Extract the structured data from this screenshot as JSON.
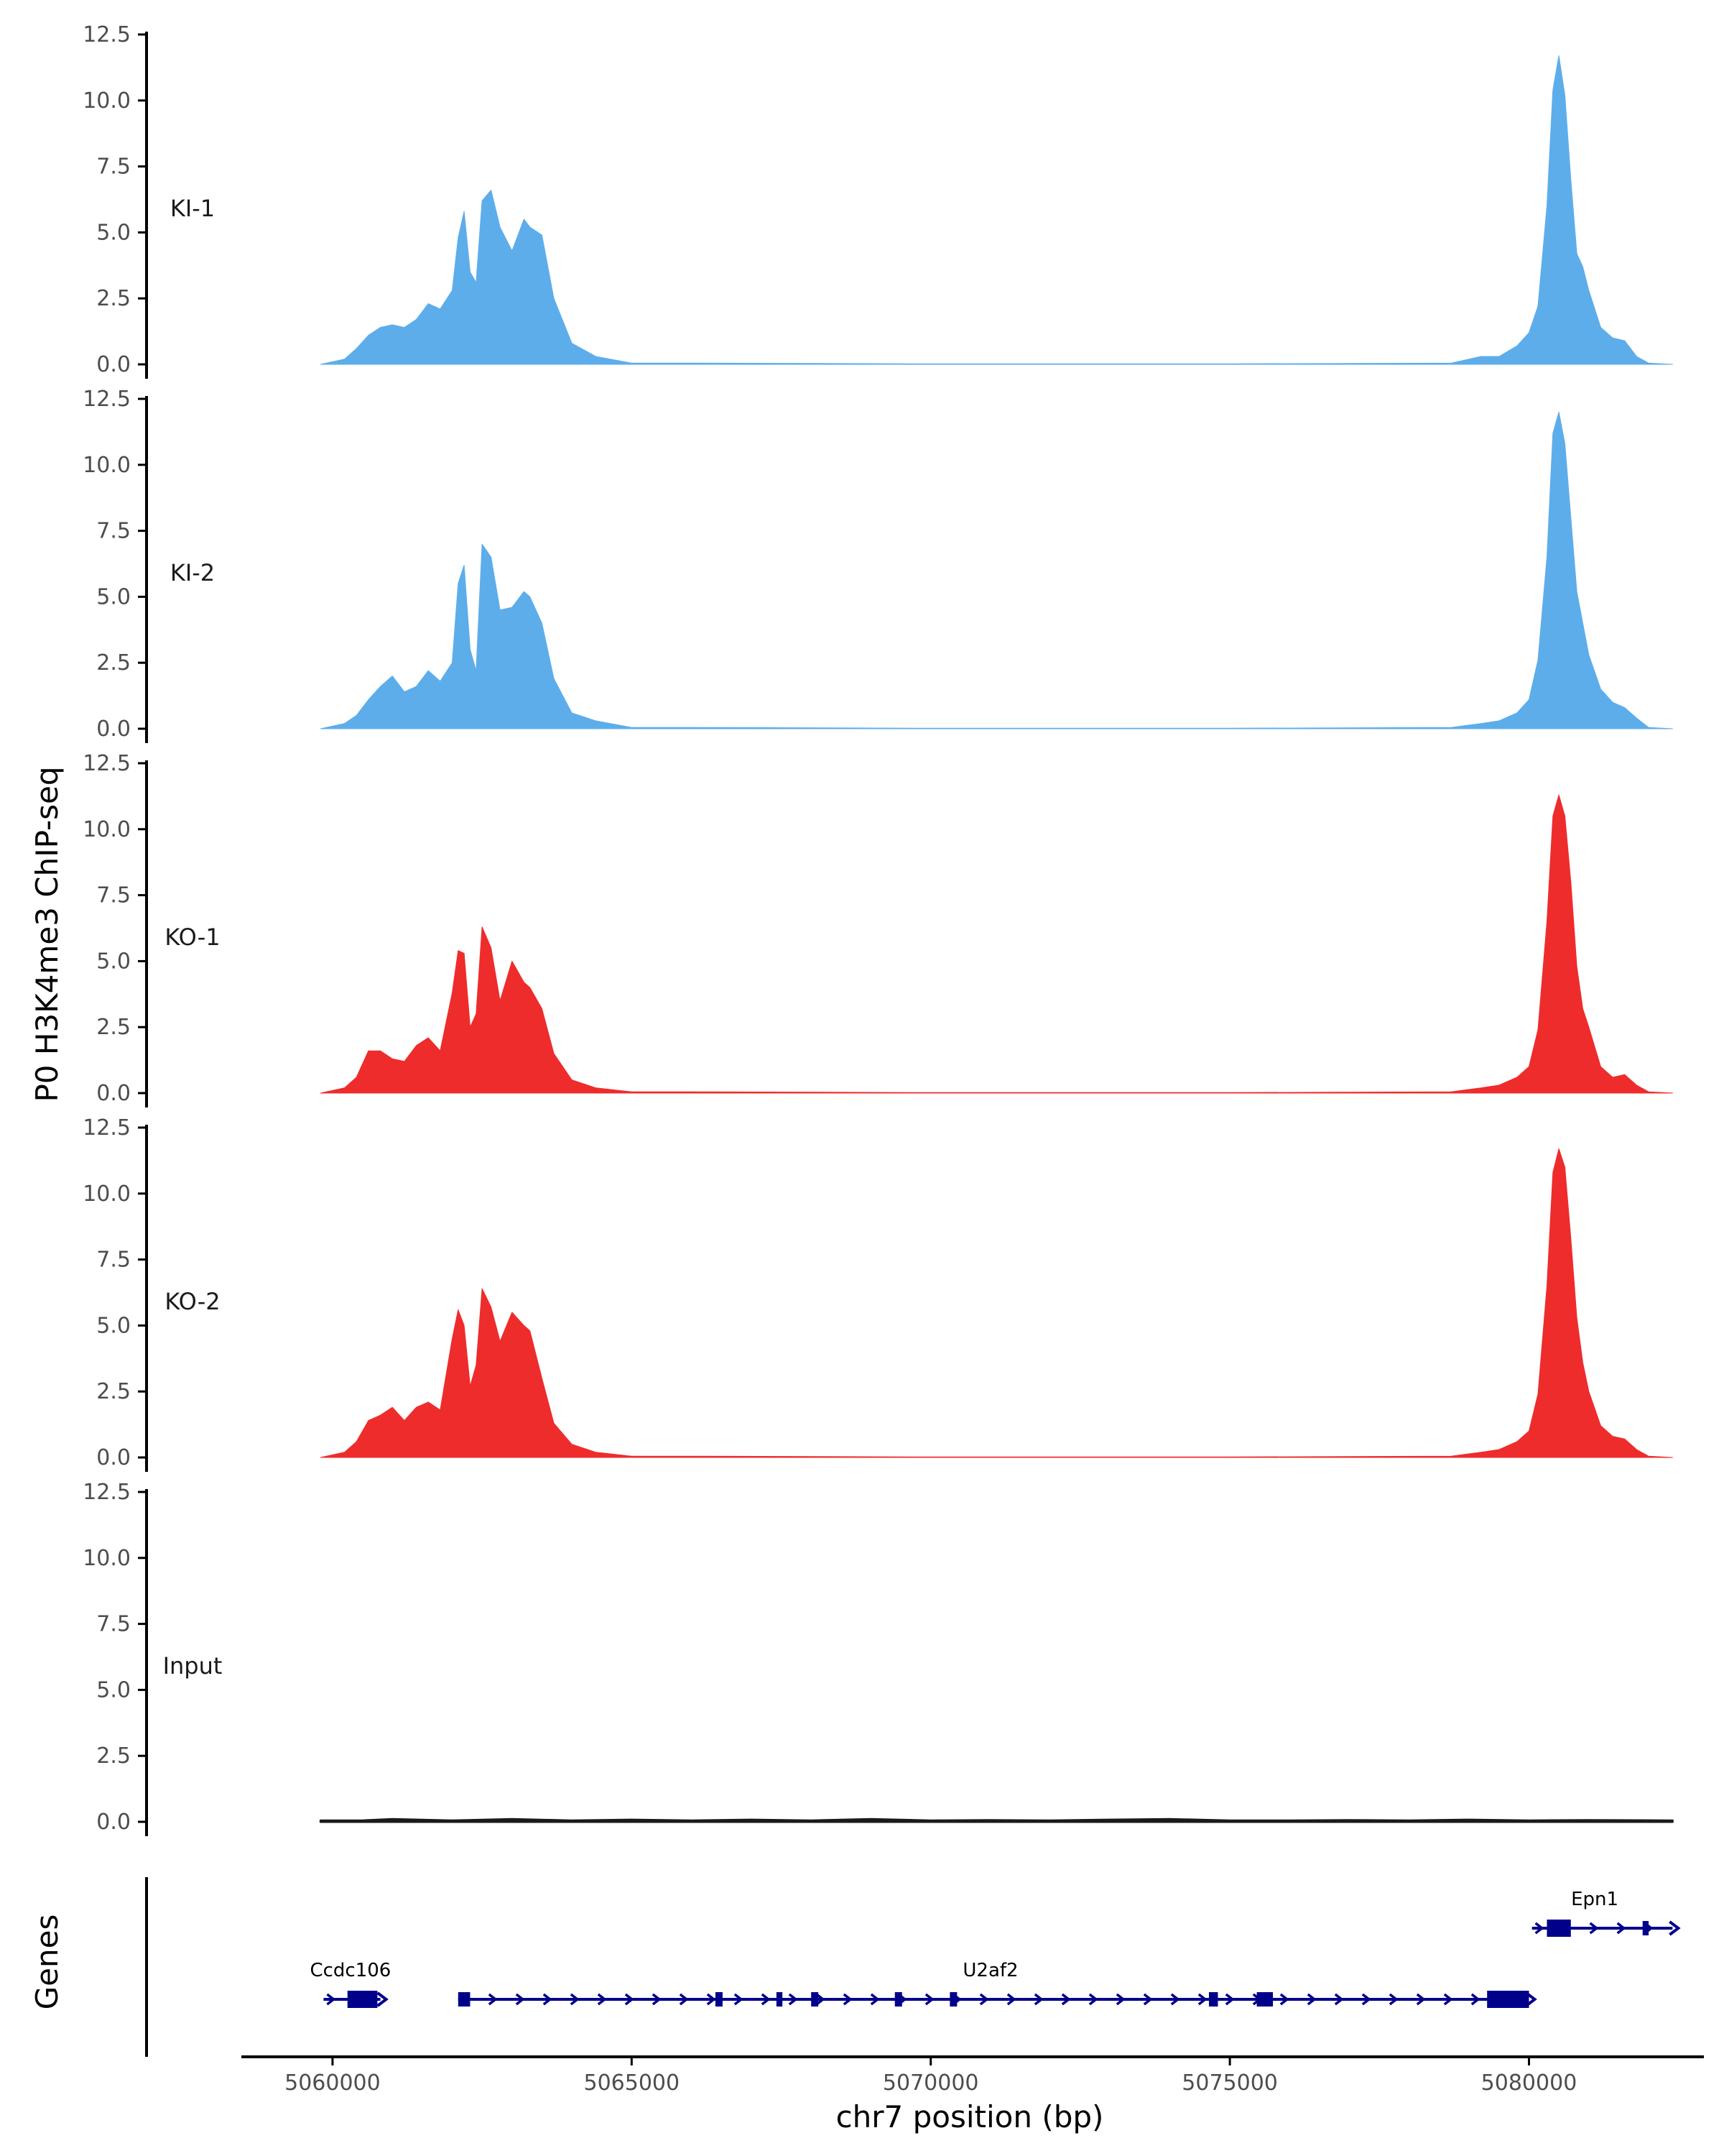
{
  "chart_data": {
    "type": "area",
    "title": "",
    "ylabel": "P0 H3K4me3 ChIP-seq",
    "xlabel": "chr7 position (bp)",
    "genes_label": "Genes",
    "ylim": [
      0,
      12.5
    ],
    "yticks": [
      0.0,
      2.5,
      5.0,
      7.5,
      10.0,
      12.5
    ],
    "ytick_labels": [
      "0.0",
      "2.5",
      "5.0",
      "7.5",
      "10.0",
      "12.5"
    ],
    "xlim": [
      5058500,
      5082900
    ],
    "xticks": [
      5060000,
      5065000,
      5070000,
      5075000,
      5080000
    ],
    "xtick_labels": [
      "5060000",
      "5065000",
      "5070000",
      "5075000",
      "5080000"
    ],
    "colors": {
      "KI": "#5DADEB",
      "KO": "#EE2C2C",
      "Input": "#1a1a1a",
      "gene": "#00008B",
      "axis": "#000000"
    },
    "series": [
      {
        "name": "KI-1",
        "color": "#5DADEB",
        "x": [
          5059800,
          5060200,
          5060400,
          5060600,
          5060800,
          5061000,
          5061200,
          5061400,
          5061600,
          5061800,
          5062000,
          5062100,
          5062200,
          5062300,
          5062400,
          5062500,
          5062650,
          5062800,
          5063000,
          5063200,
          5063300,
          5063500,
          5063700,
          5064000,
          5064400,
          5065000,
          5066000,
          5070000,
          5075000,
          5078700,
          5079200,
          5079500,
          5079800,
          5080000,
          5080150,
          5080300,
          5080400,
          5080500,
          5080600,
          5080700,
          5080800,
          5080900,
          5081000,
          5081200,
          5081400,
          5081600,
          5081800,
          5082000,
          5082400
        ],
        "y": [
          0,
          0.2,
          0.6,
          1.1,
          1.4,
          1.5,
          1.4,
          1.7,
          2.3,
          2.1,
          2.8,
          4.8,
          5.8,
          3.5,
          3.1,
          6.2,
          6.6,
          5.2,
          4.3,
          5.5,
          5.2,
          4.9,
          2.5,
          0.8,
          0.3,
          0.05,
          0.05,
          0.02,
          0.02,
          0.05,
          0.3,
          0.3,
          0.7,
          1.2,
          2.2,
          6.0,
          10.4,
          11.7,
          10.2,
          7.0,
          4.2,
          3.7,
          2.8,
          1.4,
          1.0,
          0.9,
          0.3,
          0.05,
          0
        ]
      },
      {
        "name": "KI-2",
        "color": "#5DADEB",
        "x": [
          5059800,
          5060200,
          5060400,
          5060600,
          5060800,
          5061000,
          5061200,
          5061400,
          5061600,
          5061800,
          5062000,
          5062100,
          5062200,
          5062300,
          5062400,
          5062500,
          5062650,
          5062800,
          5063000,
          5063200,
          5063300,
          5063500,
          5063700,
          5064000,
          5064400,
          5065000,
          5066000,
          5070000,
          5075000,
          5078700,
          5079200,
          5079500,
          5079800,
          5080000,
          5080150,
          5080300,
          5080400,
          5080500,
          5080600,
          5080700,
          5080800,
          5080900,
          5081000,
          5081200,
          5081400,
          5081600,
          5081800,
          5082000,
          5082400
        ],
        "y": [
          0,
          0.2,
          0.5,
          1.1,
          1.6,
          2.0,
          1.4,
          1.6,
          2.2,
          1.8,
          2.5,
          5.5,
          6.2,
          3.0,
          2.2,
          7.0,
          6.5,
          4.5,
          4.6,
          5.2,
          5.0,
          4.0,
          1.9,
          0.6,
          0.3,
          0.05,
          0.05,
          0.02,
          0.02,
          0.05,
          0.2,
          0.3,
          0.6,
          1.1,
          2.6,
          6.5,
          11.2,
          12.0,
          10.8,
          8.0,
          5.2,
          4.0,
          2.8,
          1.5,
          1.0,
          0.8,
          0.4,
          0.05,
          0
        ]
      },
      {
        "name": "KO-1",
        "color": "#EE2C2C",
        "x": [
          5059800,
          5060200,
          5060400,
          5060600,
          5060800,
          5061000,
          5061200,
          5061400,
          5061600,
          5061800,
          5062000,
          5062100,
          5062200,
          5062300,
          5062400,
          5062500,
          5062650,
          5062800,
          5063000,
          5063200,
          5063300,
          5063500,
          5063700,
          5064000,
          5064400,
          5065000,
          5066000,
          5070000,
          5075000,
          5078700,
          5079200,
          5079500,
          5079800,
          5080000,
          5080150,
          5080300,
          5080400,
          5080500,
          5080600,
          5080700,
          5080800,
          5080900,
          5081000,
          5081200,
          5081400,
          5081600,
          5081800,
          5082000,
          5082400
        ],
        "y": [
          0,
          0.2,
          0.6,
          1.6,
          1.6,
          1.3,
          1.2,
          1.8,
          2.1,
          1.6,
          3.8,
          5.4,
          5.3,
          2.5,
          3.0,
          6.3,
          5.5,
          3.5,
          5.0,
          4.2,
          4.0,
          3.2,
          1.5,
          0.5,
          0.2,
          0.05,
          0.05,
          0.02,
          0.02,
          0.05,
          0.2,
          0.3,
          0.6,
          1.0,
          2.4,
          6.5,
          10.5,
          11.3,
          10.5,
          8.0,
          4.8,
          3.2,
          2.5,
          1.0,
          0.6,
          0.7,
          0.3,
          0.05,
          0
        ]
      },
      {
        "name": "KO-2",
        "color": "#EE2C2C",
        "x": [
          5059800,
          5060200,
          5060400,
          5060600,
          5060800,
          5061000,
          5061200,
          5061400,
          5061600,
          5061800,
          5062000,
          5062100,
          5062200,
          5062300,
          5062400,
          5062500,
          5062650,
          5062800,
          5063000,
          5063200,
          5063300,
          5063500,
          5063700,
          5064000,
          5064400,
          5065000,
          5066000,
          5070000,
          5075000,
          5078700,
          5079200,
          5079500,
          5079800,
          5080000,
          5080150,
          5080300,
          5080400,
          5080500,
          5080600,
          5080700,
          5080800,
          5080900,
          5081000,
          5081200,
          5081400,
          5081600,
          5081800,
          5082000,
          5082400
        ],
        "y": [
          0,
          0.2,
          0.6,
          1.4,
          1.6,
          1.9,
          1.4,
          1.9,
          2.1,
          1.8,
          4.5,
          5.6,
          5.0,
          2.7,
          3.5,
          6.4,
          5.7,
          4.4,
          5.5,
          5.0,
          4.8,
          3.0,
          1.3,
          0.5,
          0.2,
          0.05,
          0.05,
          0.02,
          0.02,
          0.05,
          0.2,
          0.3,
          0.6,
          1.0,
          2.4,
          6.5,
          10.8,
          11.7,
          11.0,
          8.3,
          5.3,
          3.6,
          2.5,
          1.2,
          0.8,
          0.7,
          0.3,
          0.05,
          0
        ]
      },
      {
        "name": "Input",
        "color": "#1a1a1a",
        "x": [
          5059800,
          5060500,
          5061000,
          5062000,
          5063000,
          5064000,
          5065000,
          5066000,
          5067000,
          5068000,
          5069000,
          5070000,
          5071000,
          5072000,
          5073000,
          5074000,
          5075000,
          5076000,
          5077000,
          5078000,
          5079000,
          5080000,
          5081000,
          5082400
        ],
        "y": [
          0.05,
          0.05,
          0.1,
          0.05,
          0.1,
          0.05,
          0.08,
          0.05,
          0.08,
          0.05,
          0.1,
          0.05,
          0.06,
          0.05,
          0.08,
          0.1,
          0.05,
          0.05,
          0.06,
          0.05,
          0.08,
          0.05,
          0.06,
          0.05
        ]
      }
    ],
    "genes": [
      {
        "name": "Ccdc106",
        "row": "lower",
        "start": 5059850,
        "end": 5060800,
        "exons": [
          [
            5060250,
            5060750
          ]
        ],
        "label_at": 5060300
      },
      {
        "name": "U2af2",
        "row": "lower",
        "start": 5062100,
        "end": 5080000,
        "exons": [
          [
            5062100,
            5062300
          ],
          [
            5066400,
            5066520
          ],
          [
            5067420,
            5067520
          ],
          [
            5068000,
            5068120
          ],
          [
            5069400,
            5069520
          ],
          [
            5070320,
            5070440
          ],
          [
            5074650,
            5074800
          ],
          [
            5075450,
            5075720
          ],
          [
            5079300,
            5080000
          ]
        ],
        "label_at": 5071000
      },
      {
        "name": "Epn1",
        "row": "upper",
        "start": 5080050,
        "end": 5082400,
        "exons": [
          [
            5080300,
            5080700
          ],
          [
            5081900,
            5082000
          ]
        ],
        "label_at": 5081100
      }
    ]
  }
}
